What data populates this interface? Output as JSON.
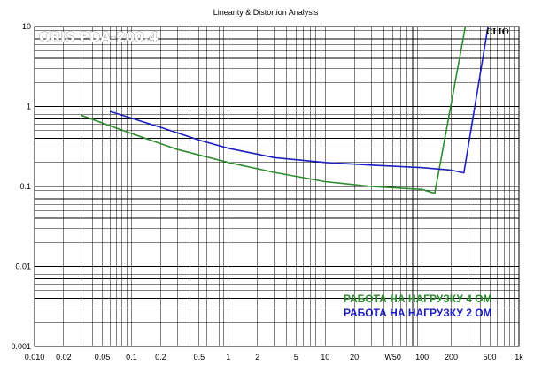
{
  "chart_data": {
    "type": "line",
    "title": "Linearity & Distortion Analysis",
    "xscale": "log",
    "yscale": "log",
    "xlim": [
      0.01,
      1000
    ],
    "ylim": [
      0.001,
      10
    ],
    "grid": true,
    "x_ticks": [
      0.01,
      0.02,
      0.05,
      0.1,
      0.2,
      0.5,
      1,
      2,
      5,
      10,
      20,
      50,
      100,
      200,
      500,
      1000
    ],
    "x_tick_labels": [
      "0.010",
      "0.02",
      "0.05",
      "0.1",
      "0.2",
      "0.5",
      "1",
      "2",
      "5",
      "10",
      "20",
      "W50",
      "100",
      "200",
      "500",
      "1k"
    ],
    "y_ticks": [
      0.001,
      0.01,
      0.1,
      1,
      10
    ],
    "y_tick_labels": [
      "0.001",
      "0.01",
      "0.1",
      "1",
      "10"
    ],
    "series": [
      {
        "name": "РАБОТА НА НАГРУЗКУ 4 ОМ",
        "color": "#2e8b2e",
        "points": [
          [
            0.03,
            0.78
          ],
          [
            0.1,
            0.46
          ],
          [
            0.3,
            0.29
          ],
          [
            1,
            0.2
          ],
          [
            3,
            0.15
          ],
          [
            10,
            0.115
          ],
          [
            30,
            0.1
          ],
          [
            100,
            0.092
          ],
          [
            135,
            0.082
          ],
          [
            280,
            10
          ]
        ]
      },
      {
        "name": "РАБОТА НА НАГРУЗКУ 2 ОМ",
        "color": "#1f1fc0",
        "points": [
          [
            0.06,
            0.87
          ],
          [
            0.2,
            0.55
          ],
          [
            0.5,
            0.38
          ],
          [
            1,
            0.3
          ],
          [
            3,
            0.23
          ],
          [
            10,
            0.2
          ],
          [
            30,
            0.185
          ],
          [
            100,
            0.172
          ],
          [
            200,
            0.16
          ],
          [
            270,
            0.148
          ],
          [
            480,
            10
          ]
        ]
      }
    ],
    "legend": "bottom-right",
    "annotations": {
      "model": "ORIS PDA-200.4",
      "brand": "CLIO"
    }
  }
}
